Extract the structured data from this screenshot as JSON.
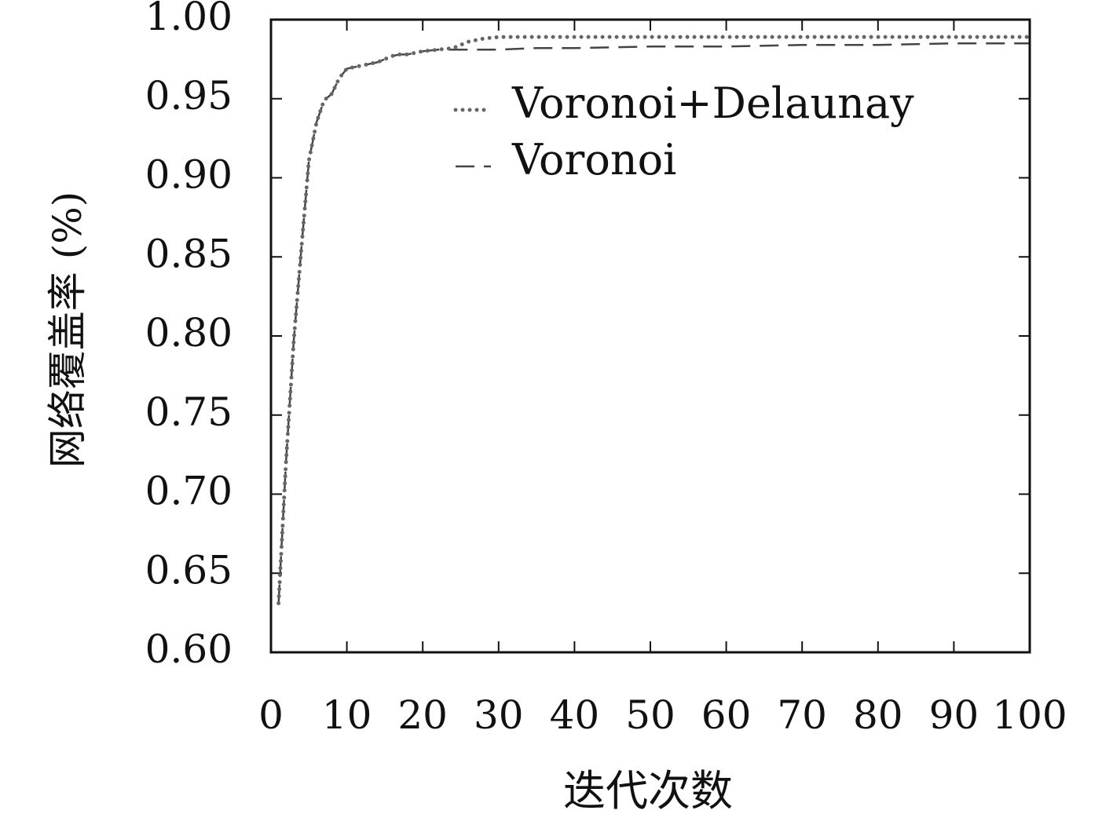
{
  "chart_data": {
    "type": "line",
    "xlabel": "迭代次数",
    "ylabel": "网络覆盖率 (%)",
    "x": [
      1,
      2,
      3,
      4,
      5,
      6,
      7,
      8,
      9,
      10,
      11,
      12,
      13,
      14,
      15,
      16,
      17,
      18,
      19,
      20,
      22,
      24,
      26,
      28,
      30,
      35,
      40,
      50,
      60,
      70,
      80,
      90,
      100
    ],
    "series": [
      {
        "name": "Voronoi+Delaunay",
        "color": "#666666",
        "style": "dotted",
        "values": [
          0.631,
          0.722,
          0.797,
          0.855,
          0.911,
          0.935,
          0.949,
          0.953,
          0.963,
          0.969,
          0.97,
          0.971,
          0.972,
          0.973,
          0.975,
          0.977,
          0.978,
          0.978,
          0.979,
          0.98,
          0.981,
          0.982,
          0.986,
          0.988,
          0.989,
          0.989,
          0.989,
          0.989,
          0.989,
          0.989,
          0.989,
          0.989,
          0.989
        ]
      },
      {
        "name": "Voronoi",
        "color": "#444444",
        "style": "dashed",
        "values": [
          0.631,
          0.722,
          0.797,
          0.855,
          0.911,
          0.935,
          0.949,
          0.953,
          0.963,
          0.969,
          0.97,
          0.971,
          0.972,
          0.973,
          0.975,
          0.977,
          0.978,
          0.978,
          0.979,
          0.98,
          0.981,
          0.981,
          0.981,
          0.981,
          0.981,
          0.982,
          0.982,
          0.983,
          0.983,
          0.984,
          0.984,
          0.985,
          0.985
        ]
      }
    ],
    "xlim": [
      0,
      100
    ],
    "xticks": [
      0,
      10,
      20,
      30,
      40,
      50,
      60,
      70,
      80,
      90,
      100
    ],
    "ylim": [
      0.6,
      1
    ],
    "yticks": [
      {
        "value": 0.6,
        "label": "0.60"
      },
      0.65,
      {
        "value": 0.7,
        "label": "0.70"
      },
      0.75,
      {
        "value": 0.8,
        "label": "0.80"
      },
      0.85,
      {
        "value": 0.9,
        "label": "0.90"
      },
      0.95,
      {
        "value": 1,
        "label": "1.00"
      }
    ],
    "grid": false,
    "legend": "upper right"
  }
}
